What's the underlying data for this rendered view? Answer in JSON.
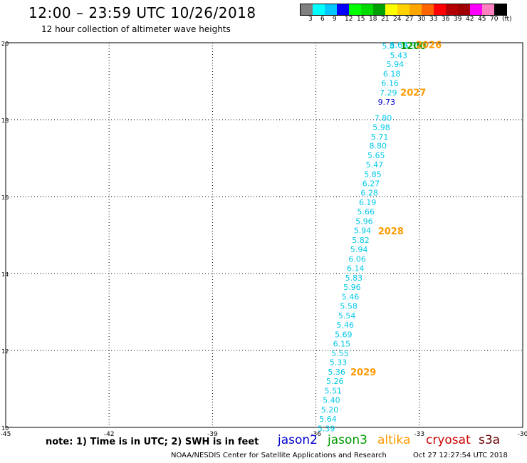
{
  "header": {
    "title": "12:00 – 23:59 UTC 10/26/2018",
    "subtitle": "12 hour collection of altimeter wave heights"
  },
  "colorbar": {
    "colors": [
      "#808080",
      "#00ffff",
      "#00c8ff",
      "#0000ff",
      "#00ff00",
      "#00dc00",
      "#00a000",
      "#ffff00",
      "#ffd200",
      "#ffa500",
      "#ff6400",
      "#ff0000",
      "#b40000",
      "#a00000",
      "#ff00ff",
      "#ff80c0",
      "#000000"
    ],
    "labels": [
      "3",
      "6",
      "9",
      "12",
      "15",
      "18",
      "21",
      "24",
      "27",
      "30",
      "33",
      "36",
      "39",
      "42",
      "45",
      "70",
      "(ft)"
    ]
  },
  "footer": {
    "note": "note:  1) Time is in UTC;  2) SWH is in feet",
    "satellites": [
      {
        "name": "jason2",
        "color": "#0000cc"
      },
      {
        "name": "jason3",
        "color": "#009900"
      },
      {
        "name": "altika",
        "color": "#ff9900"
      },
      {
        "name": "cryosat",
        "color": "#cc0000"
      },
      {
        "name": "s3a",
        "color": "#660000"
      }
    ],
    "credit": "NOAA/NESDIS Center for Satellite Applications and Research",
    "timestamp": "Oct 27 12:27:54 UTC 2018"
  },
  "chart_data": {
    "type": "scatter",
    "xlim": [
      -45,
      -30
    ],
    "ylim": [
      10,
      20
    ],
    "x_ticks": [
      "-45",
      "-42",
      "-39",
      "-36",
      "-33",
      "-30"
    ],
    "y_ticks": [
      "10",
      "12",
      "14",
      "16",
      "18",
      "20"
    ],
    "grid": true,
    "points": [
      {
        "x": -33.9,
        "y": 19.92,
        "label": "5.8"
      },
      {
        "x": -33.6,
        "y": 19.94,
        "label": "5.60"
      },
      {
        "x": -33.2,
        "y": 19.93,
        "label": "5.30"
      },
      {
        "x": -33.6,
        "y": 19.68,
        "label": "5.43"
      },
      {
        "x": -33.7,
        "y": 19.44,
        "label": "5.94"
      },
      {
        "x": -33.8,
        "y": 19.19,
        "label": "6.18"
      },
      {
        "x": -33.85,
        "y": 18.95,
        "label": "6.16"
      },
      {
        "x": -33.9,
        "y": 18.7,
        "label": "7.29"
      },
      {
        "x": -33.95,
        "y": 18.46,
        "label": "9.73",
        "sat": "jason2"
      },
      {
        "x": -34.05,
        "y": 18.05,
        "label": "7.80"
      },
      {
        "x": -34.1,
        "y": 17.81,
        "label": "5.98"
      },
      {
        "x": -34.15,
        "y": 17.56,
        "label": "5.71"
      },
      {
        "x": -34.2,
        "y": 17.32,
        "label": "8.80"
      },
      {
        "x": -34.25,
        "y": 17.07,
        "label": "5.65"
      },
      {
        "x": -34.3,
        "y": 16.83,
        "label": "5.47"
      },
      {
        "x": -34.35,
        "y": 16.58,
        "label": "5.85"
      },
      {
        "x": -34.4,
        "y": 16.34,
        "label": "6.27"
      },
      {
        "x": -34.45,
        "y": 16.1,
        "label": "6.28"
      },
      {
        "x": -34.5,
        "y": 15.85,
        "label": "6.19"
      },
      {
        "x": -34.55,
        "y": 15.61,
        "label": "5.66"
      },
      {
        "x": -34.6,
        "y": 15.36,
        "label": "5.96"
      },
      {
        "x": -34.65,
        "y": 15.12,
        "label": "5.94"
      },
      {
        "x": -34.7,
        "y": 14.87,
        "label": "5.82"
      },
      {
        "x": -34.75,
        "y": 14.63,
        "label": "5.94"
      },
      {
        "x": -34.8,
        "y": 14.38,
        "label": "6.06"
      },
      {
        "x": -34.85,
        "y": 14.14,
        "label": "6.14"
      },
      {
        "x": -34.9,
        "y": 13.89,
        "label": "5.83"
      },
      {
        "x": -34.95,
        "y": 13.65,
        "label": "5.96"
      },
      {
        "x": -35.0,
        "y": 13.4,
        "label": "5.46"
      },
      {
        "x": -35.05,
        "y": 13.16,
        "label": "5.58"
      },
      {
        "x": -35.1,
        "y": 12.91,
        "label": "5.54"
      },
      {
        "x": -35.15,
        "y": 12.67,
        "label": "5.46"
      },
      {
        "x": -35.2,
        "y": 12.42,
        "label": "5.69"
      },
      {
        "x": -35.25,
        "y": 12.18,
        "label": "6.15"
      },
      {
        "x": -35.3,
        "y": 11.93,
        "label": "5.55"
      },
      {
        "x": -35.35,
        "y": 11.69,
        "label": "5.33"
      },
      {
        "x": -35.4,
        "y": 11.44,
        "label": "5.36"
      },
      {
        "x": -35.45,
        "y": 11.2,
        "label": "5.26"
      },
      {
        "x": -35.5,
        "y": 10.95,
        "label": "5.51"
      },
      {
        "x": -35.55,
        "y": 10.71,
        "label": "5.40"
      },
      {
        "x": -35.6,
        "y": 10.46,
        "label": "5.20"
      },
      {
        "x": -35.65,
        "y": 10.22,
        "label": "5.64"
      },
      {
        "x": -35.7,
        "y": 9.97,
        "label": "5.39"
      }
    ],
    "time_labels": [
      {
        "x": -33.55,
        "y": 19.93,
        "label": "1200",
        "sat": "jason3"
      },
      {
        "x": -33.1,
        "y": 19.95,
        "label": "2026",
        "sat": "altika"
      },
      {
        "x": -33.55,
        "y": 18.71,
        "label": "2027",
        "sat": "altika"
      },
      {
        "x": -34.2,
        "y": 15.11,
        "label": "2028",
        "sat": "altika"
      },
      {
        "x": -35.0,
        "y": 11.44,
        "label": "2029",
        "sat": "altika"
      }
    ]
  }
}
